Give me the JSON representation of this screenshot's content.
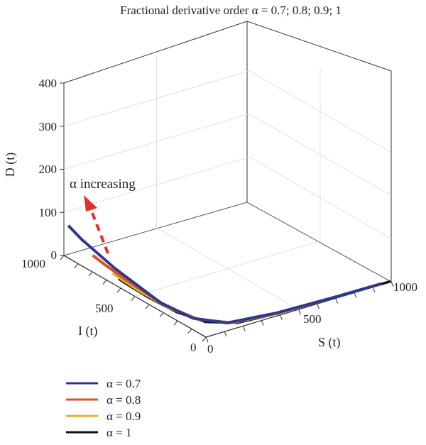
{
  "chart_data": {
    "type": "line",
    "projection": "3d",
    "title": "Fractional derivative order α = 0.7; 0.8; 0.9; 1",
    "axes": {
      "x": {
        "label": "S (t)",
        "range": [
          0,
          1000
        ],
        "ticks": [
          0,
          500,
          1000
        ]
      },
      "y": {
        "label": "I (t)",
        "range": [
          0,
          1000
        ],
        "ticks": [
          0,
          500,
          1000
        ]
      },
      "z": {
        "label": "D (t)",
        "range": [
          0,
          400
        ],
        "ticks": [
          0,
          100,
          200,
          300,
          400
        ]
      }
    },
    "grid": true,
    "legend_position": "bottom-left",
    "annotation": {
      "text": "α increasing",
      "color": "#e0302a"
    },
    "series": [
      {
        "name": "α = 0.7",
        "color": "#2b3a8f",
        "points": [
          [
            950,
            8,
            0
          ],
          [
            700,
            12,
            0
          ],
          [
            400,
            25,
            0
          ],
          [
            160,
            60,
            1
          ],
          [
            60,
            170,
            4
          ],
          [
            25,
            350,
            10
          ],
          [
            8,
            650,
            35
          ],
          [
            3,
            880,
            60
          ],
          [
            1,
            970,
            75
          ]
        ]
      },
      {
        "name": "α = 0.8",
        "color": "#d4542a",
        "points": [
          [
            950,
            8,
            0
          ],
          [
            700,
            12,
            0
          ],
          [
            400,
            22,
            0
          ],
          [
            170,
            55,
            1
          ],
          [
            70,
            160,
            3
          ],
          [
            30,
            330,
            8
          ],
          [
            10,
            560,
            22
          ],
          [
            4,
            720,
            32
          ],
          [
            2,
            800,
            38
          ]
        ]
      },
      {
        "name": "α = 0.9",
        "color": "#e8b02a",
        "points": [
          [
            950,
            8,
            0
          ],
          [
            700,
            12,
            0
          ],
          [
            400,
            20,
            0
          ],
          [
            180,
            50,
            1
          ],
          [
            80,
            150,
            2
          ],
          [
            35,
            300,
            6
          ],
          [
            12,
            480,
            14
          ],
          [
            5,
            600,
            20
          ],
          [
            3,
            660,
            23
          ]
        ]
      },
      {
        "name": "α = 1",
        "color": "#111111",
        "points": [
          [
            1000,
            5,
            0
          ],
          [
            700,
            10,
            0
          ],
          [
            400,
            18,
            0
          ],
          [
            200,
            40,
            0
          ],
          [
            90,
            120,
            1
          ],
          [
            40,
            260,
            4
          ],
          [
            15,
            430,
            10
          ],
          [
            6,
            560,
            15
          ],
          [
            3,
            620,
            18
          ]
        ]
      }
    ]
  }
}
